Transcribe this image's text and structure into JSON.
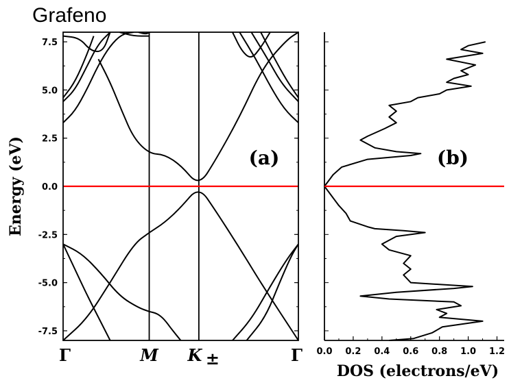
{
  "title": "Grafeno",
  "chart_data": [
    {
      "type": "line",
      "panel_label": "(a)",
      "ylabel": "Energy (eV)",
      "ylim": [
        -8.0,
        8.0
      ],
      "yticks": [
        "7.5",
        "5.0",
        "2.5",
        "0.0",
        "-2.5",
        "-5.0",
        "-7.5"
      ],
      "ytick_values": [
        7.5,
        5.0,
        2.5,
        0.0,
        -2.5,
        -5.0,
        -7.5
      ],
      "x_points": [
        {
          "label": "Γ",
          "pos": 0.0
        },
        {
          "label": "M",
          "pos": 0.366
        },
        {
          "label": "K±",
          "pos": 0.577
        },
        {
          "label": "Γ",
          "pos": 1.0
        }
      ],
      "fermi_level": 0.0,
      "fermi_color": "#ff0000",
      "bands": [
        {
          "name": "pi",
          "x": [
            0.0,
            0.1,
            0.2,
            0.3,
            0.366,
            0.43,
            0.5,
            0.577,
            0.65,
            0.75,
            0.85,
            1.0
          ],
          "y": [
            -8.0,
            -6.9,
            -5.0,
            -3.0,
            -2.4,
            -1.9,
            -1.1,
            0.0,
            -1.3,
            -3.2,
            -5.2,
            -8.0
          ]
        },
        {
          "name": "pi*",
          "x": [
            0.15,
            0.2,
            0.25,
            0.3,
            0.366,
            0.43,
            0.5,
            0.577,
            0.65,
            0.75,
            0.85,
            0.95,
            1.0
          ],
          "y": [
            6.6,
            5.4,
            3.9,
            2.5,
            1.7,
            1.65,
            1.1,
            0.0,
            1.4,
            3.6,
            6.2,
            7.6,
            8.0
          ]
        },
        {
          "name": "sigma-1",
          "x": [
            0.0,
            0.08,
            0.16,
            0.24,
            0.32,
            0.366
          ],
          "y": [
            -3.0,
            -3.5,
            -4.5,
            -5.7,
            -6.3,
            -6.5
          ]
        },
        {
          "name": "sigma-2",
          "x": [
            0.0,
            0.05,
            0.1,
            0.15,
            0.2
          ],
          "y": [
            -3.0,
            -4.3,
            -5.6,
            -6.8,
            -8.0
          ]
        },
        {
          "name": "sigma-3",
          "x": [
            0.366,
            0.4,
            0.43,
            0.46,
            0.5
          ],
          "y": [
            -6.5,
            -6.6,
            -6.9,
            -7.4,
            -8.0
          ]
        },
        {
          "name": "sigma-r1",
          "x": [
            0.72,
            0.8,
            0.88,
            0.95,
            1.0
          ],
          "y": [
            -8.0,
            -6.9,
            -5.2,
            -3.8,
            -3.0
          ]
        },
        {
          "name": "sigma-r2",
          "x": [
            0.78,
            0.86,
            0.92,
            0.97,
            1.0
          ],
          "y": [
            -8.0,
            -6.8,
            -5.0,
            -3.6,
            -3.0
          ]
        },
        {
          "name": "upper-1",
          "x": [
            0.0,
            0.05,
            0.1,
            0.15,
            0.2,
            0.25,
            0.3
          ],
          "y": [
            3.3,
            3.9,
            5.0,
            6.3,
            7.3,
            7.9,
            8.0
          ]
        },
        {
          "name": "upper-2",
          "x": [
            0.0,
            0.05,
            0.1,
            0.15,
            0.2
          ],
          "y": [
            4.4,
            5.0,
            6.2,
            7.4,
            8.0
          ]
        },
        {
          "name": "upper-3",
          "x": [
            0.0,
            0.05,
            0.1,
            0.13
          ],
          "y": [
            4.6,
            5.4,
            6.8,
            7.8
          ]
        },
        {
          "name": "upper-4",
          "x": [
            0.0,
            0.07,
            0.12,
            0.17,
            0.2
          ],
          "y": [
            7.8,
            7.7,
            7.0,
            7.0,
            8.0
          ]
        },
        {
          "name": "upper-5",
          "x": [
            0.24,
            0.3,
            0.366
          ],
          "y": [
            8.0,
            7.8,
            7.8
          ]
        },
        {
          "name": "upper-6",
          "x": [
            0.32,
            0.35,
            0.37
          ],
          "y": [
            8.0,
            7.9,
            8.0
          ]
        },
        {
          "name": "upper-r1",
          "x": [
            0.75,
            0.82,
            0.88,
            0.94,
            1.0
          ],
          "y": [
            8.0,
            6.6,
            5.2,
            4.0,
            3.3
          ]
        },
        {
          "name": "upper-r2",
          "x": [
            0.8,
            0.87,
            0.93,
            1.0
          ],
          "y": [
            8.0,
            6.6,
            5.3,
            4.4
          ]
        },
        {
          "name": "upper-r3",
          "x": [
            0.84,
            0.9,
            0.95,
            1.0
          ],
          "y": [
            8.0,
            6.6,
            5.5,
            4.6
          ]
        },
        {
          "name": "upper-r4",
          "x": [
            0.72,
            0.76,
            0.8,
            0.84,
            0.88
          ],
          "y": [
            8.0,
            7.0,
            6.6,
            7.2,
            8.0
          ]
        }
      ]
    },
    {
      "type": "line",
      "panel_label": "(b)",
      "xlabel": "DOS (electrons/eV)",
      "xlim": [
        0.0,
        1.25
      ],
      "xticks": [
        "0.0",
        "0.2",
        "0.4",
        "0.6",
        "0.8",
        "1.0",
        "1.2"
      ],
      "xtick_values": [
        0.0,
        0.2,
        0.4,
        0.6,
        0.8,
        1.0,
        1.2
      ],
      "ylim": [
        -8.0,
        8.0
      ],
      "fermi_level": 0.0,
      "fermi_color": "#ff0000",
      "series": [
        {
          "energy": [
            -8.0,
            -7.9,
            -7.6,
            -7.3,
            -7.0,
            -6.8,
            -6.6,
            -6.4,
            -6.2,
            -6.0,
            -5.85,
            -5.7,
            -5.5,
            -5.3,
            -5.2,
            -5.0,
            -4.6,
            -4.3,
            -4.0,
            -3.6,
            -3.3,
            -3.0,
            -2.6,
            -2.4,
            -2.3,
            -2.2,
            -2.1,
            -1.8,
            -1.4,
            -1.0,
            -0.6,
            -0.3,
            0.0,
            0.3,
            0.6,
            1.0,
            1.4,
            1.6,
            1.7,
            1.8,
            2.0,
            2.2,
            2.4,
            2.6,
            3.0,
            3.3,
            3.6,
            3.9,
            4.2,
            4.4,
            4.6,
            4.8,
            5.0,
            5.2,
            5.4,
            5.6,
            5.8,
            6.0,
            6.3,
            6.6,
            6.9,
            7.1,
            7.3,
            7.5
          ],
          "dos": [
            0.45,
            0.62,
            0.75,
            0.82,
            1.1,
            0.8,
            0.85,
            0.78,
            0.95,
            0.9,
            0.45,
            0.25,
            0.5,
            0.9,
            1.03,
            0.6,
            0.55,
            0.6,
            0.55,
            0.6,
            0.45,
            0.4,
            0.5,
            0.7,
            0.55,
            0.35,
            0.3,
            0.18,
            0.15,
            0.1,
            0.06,
            0.03,
            0.0,
            0.03,
            0.06,
            0.12,
            0.3,
            0.6,
            0.67,
            0.5,
            0.35,
            0.3,
            0.25,
            0.3,
            0.42,
            0.5,
            0.45,
            0.5,
            0.45,
            0.6,
            0.65,
            0.8,
            0.85,
            1.02,
            0.85,
            0.9,
            1.0,
            0.95,
            1.05,
            0.85,
            1.1,
            0.95,
            1.0,
            1.12
          ]
        }
      ]
    }
  ]
}
